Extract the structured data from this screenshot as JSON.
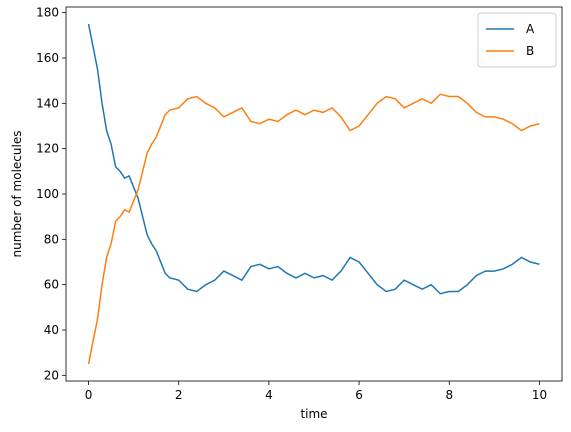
{
  "chart_data": {
    "type": "line",
    "xlabel": "time",
    "ylabel": "number of molecules",
    "x": [
      0,
      0.1,
      0.2,
      0.3,
      0.4,
      0.5,
      0.6,
      0.7,
      0.8,
      0.9,
      1.0,
      1.1,
      1.2,
      1.3,
      1.4,
      1.5,
      1.6,
      1.7,
      1.8,
      2.0,
      2.2,
      2.4,
      2.6,
      2.8,
      3.0,
      3.2,
      3.4,
      3.6,
      3.8,
      4.0,
      4.2,
      4.4,
      4.6,
      4.8,
      5.0,
      5.2,
      5.4,
      5.6,
      5.8,
      6.0,
      6.2,
      6.4,
      6.6,
      6.8,
      7.0,
      7.2,
      7.4,
      7.6,
      7.8,
      8.0,
      8.2,
      8.4,
      8.6,
      8.8,
      9.0,
      9.2,
      9.4,
      9.6,
      9.8,
      10.0
    ],
    "series": [
      {
        "name": "A",
        "color": "#1f77b4",
        "values": [
          175,
          165,
          155,
          140,
          128,
          122,
          112,
          110,
          107,
          108,
          103,
          98,
          90,
          82,
          78,
          75,
          70,
          65,
          63,
          62,
          58,
          57,
          60,
          62,
          66,
          64,
          62,
          68,
          69,
          67,
          68,
          65,
          63,
          65,
          63,
          64,
          62,
          66,
          72,
          70,
          65,
          60,
          57,
          58,
          62,
          60,
          58,
          60,
          56,
          57,
          57,
          60,
          64,
          66,
          66,
          67,
          69,
          72,
          70,
          69
        ]
      },
      {
        "name": "B",
        "color": "#ff7f0e",
        "values": [
          25,
          35,
          45,
          60,
          72,
          78,
          88,
          90,
          93,
          92,
          97,
          102,
          110,
          118,
          122,
          125,
          130,
          135,
          137,
          138,
          142,
          143,
          140,
          138,
          134,
          136,
          138,
          132,
          131,
          133,
          132,
          135,
          137,
          135,
          137,
          136,
          138,
          134,
          128,
          130,
          135,
          140,
          143,
          142,
          138,
          140,
          142,
          140,
          144,
          143,
          143,
          140,
          136,
          134,
          134,
          133,
          131,
          128,
          130,
          131
        ]
      }
    ],
    "xlim": [
      -0.5,
      10.5
    ],
    "xticks": [
      0,
      2,
      4,
      6,
      8,
      10
    ],
    "ylim": [
      17.5,
      182.5
    ],
    "yticks": [
      20,
      40,
      60,
      80,
      100,
      120,
      140,
      160,
      180
    ],
    "legend": "upper right"
  }
}
